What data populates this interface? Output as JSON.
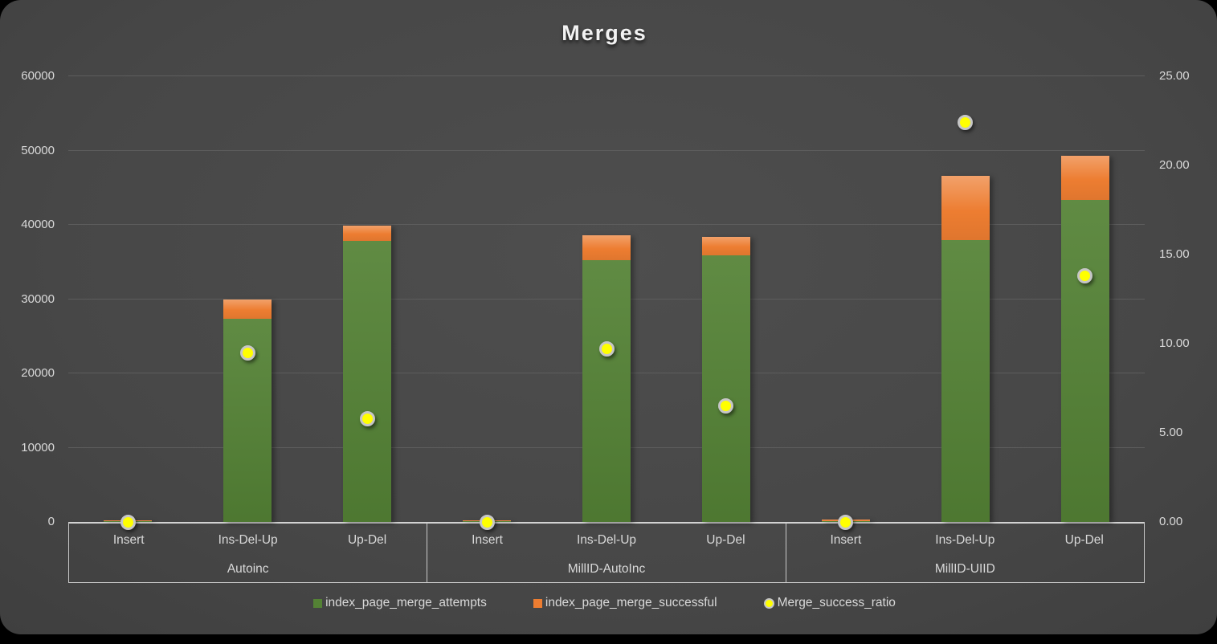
{
  "chart_data": {
    "type": "combo-stacked-bar-scatter",
    "title": "Merges",
    "legend_position": "bottom",
    "grid": true,
    "left_axis": {
      "min": 0,
      "max": 60000,
      "step": 10000,
      "tick_labels": [
        "0",
        "10000",
        "20000",
        "30000",
        "40000",
        "50000",
        "60000"
      ]
    },
    "right_axis": {
      "min": 0,
      "max": 25,
      "step": 5,
      "tick_labels": [
        "0.00",
        "5.00",
        "10.00",
        "15.00",
        "20.00",
        "25.00"
      ]
    },
    "series": [
      {
        "name": "index_page_merge_attempts",
        "type": "bar",
        "stack": true,
        "color": "#548235",
        "axis": "left"
      },
      {
        "name": "index_page_merge_successful",
        "type": "bar",
        "stack": true,
        "color": "#ED7D31",
        "axis": "left"
      },
      {
        "name": "Merge_success_ratio",
        "type": "scatter",
        "color": "#FFFF00",
        "axis": "right"
      }
    ],
    "groups": [
      {
        "label": "Autoinc",
        "points": [
          {
            "category": "Insert",
            "attempts": 150,
            "successful": 30,
            "ratio": 0.0
          },
          {
            "category": "Ins-Del-Up",
            "attempts": 27400,
            "successful": 2600,
            "ratio": 9.5
          },
          {
            "category": "Up-Del",
            "attempts": 37800,
            "successful": 2100,
            "ratio": 5.8
          }
        ]
      },
      {
        "label": "MillID-AutoInc",
        "points": [
          {
            "category": "Insert",
            "attempts": 150,
            "successful": 30,
            "ratio": 0.0
          },
          {
            "category": "Ins-Del-Up",
            "attempts": 35200,
            "successful": 3350,
            "ratio": 9.7
          },
          {
            "category": "Up-Del",
            "attempts": 35900,
            "successful": 2500,
            "ratio": 6.5
          }
        ]
      },
      {
        "label": "MillID-UIID",
        "points": [
          {
            "category": "Insert",
            "attempts": 100,
            "successful": 250,
            "ratio": 0.0
          },
          {
            "category": "Ins-Del-Up",
            "attempts": 38000,
            "successful": 8600,
            "ratio": 22.4
          },
          {
            "category": "Up-Del",
            "attempts": 43400,
            "successful": 5900,
            "ratio": 13.8
          }
        ]
      }
    ]
  }
}
